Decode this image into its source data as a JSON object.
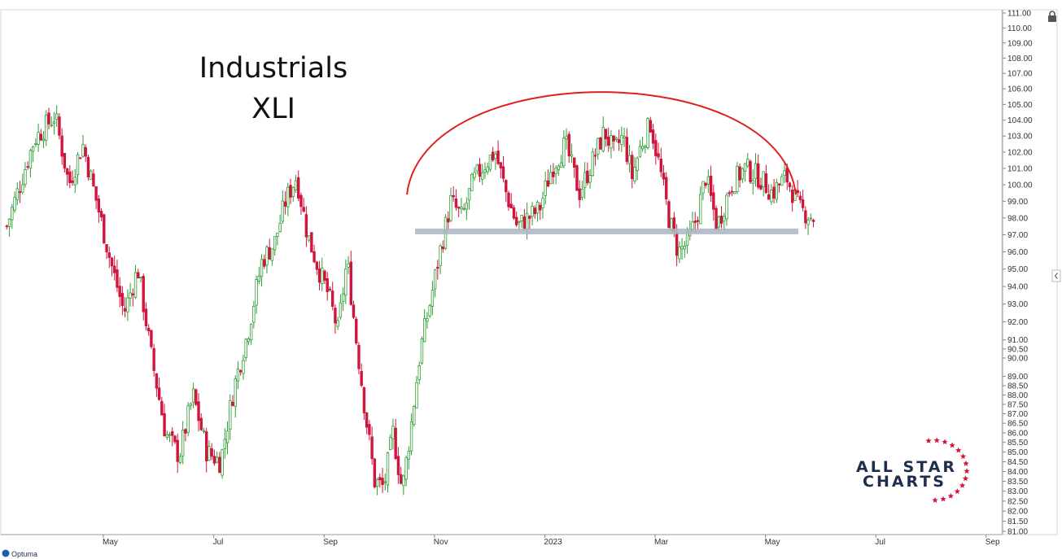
{
  "chart_data": {
    "type": "candlestick",
    "title": "Industrials",
    "subtitle": "XLI",
    "x_ticks": [
      "May",
      "Jul",
      "Sep",
      "Nov",
      "2023",
      "Mar",
      "May",
      "Jul",
      "Sep"
    ],
    "y_ticks": [
      "111.00",
      "110.00",
      "109.00",
      "108.00",
      "107.00",
      "106.00",
      "105.00",
      "104.00",
      "103.00",
      "102.00",
      "101.00",
      "100.00",
      "99.00",
      "98.00",
      "97.00",
      "96.00",
      "95.00",
      "94.00",
      "93.00",
      "92.00",
      "91.00",
      "90.50",
      "90.00",
      "89.00",
      "88.50",
      "88.00",
      "87.50",
      "87.00",
      "86.50",
      "86.00",
      "85.50",
      "85.00",
      "84.50",
      "84.00",
      "83.50",
      "83.00",
      "82.50",
      "82.00",
      "81.50",
      "81.00"
    ],
    "ylim": [
      81,
      111
    ],
    "y_scale": "log",
    "colors": {
      "up": "#2e9e33",
      "down": "#d1153d",
      "arc": "#e01f1f",
      "support": "#a9b4c2"
    },
    "support_level": 97.2,
    "arc": {
      "start": "Oct 2022",
      "end": "May 2023",
      "peak": 104.7,
      "ends_value": 99.5
    },
    "price_path": [
      [
        "Mar",
        97.5
      ],
      [
        "Mar",
        102.8
      ],
      [
        "Apr",
        104.3
      ],
      [
        "Apr",
        100.0
      ],
      [
        "Apr",
        102.5
      ],
      [
        "Apr",
        99.0
      ],
      [
        "May",
        95.5
      ],
      [
        "May",
        92.5
      ],
      [
        "May",
        95.0
      ],
      [
        "May",
        90.0
      ],
      [
        "Jun",
        86.0
      ],
      [
        "Jun",
        84.8
      ],
      [
        "Jun",
        88.0
      ],
      [
        "Jun",
        85.0
      ],
      [
        "Jul",
        84.5
      ],
      [
        "Jul",
        88.5
      ],
      [
        "Jul",
        91.5
      ],
      [
        "Jul",
        95.5
      ],
      [
        "Aug",
        96.5
      ],
      [
        "Aug",
        99.0
      ],
      [
        "Aug",
        100.5
      ],
      [
        "Aug",
        97.0
      ],
      [
        "Aug",
        95.0
      ],
      [
        "Sep",
        93.5
      ],
      [
        "Sep",
        91.5
      ],
      [
        "Sep",
        95.5
      ],
      [
        "Sep",
        91.0
      ],
      [
        "Sep",
        87.0
      ],
      [
        "Sep",
        83.5
      ],
      [
        "Oct",
        83.2
      ],
      [
        "Oct",
        86.0
      ],
      [
        "Oct",
        83.0
      ],
      [
        "Oct",
        86.5
      ],
      [
        "Oct",
        90.5
      ],
      [
        "Oct",
        93.0
      ],
      [
        "Nov",
        96.0
      ],
      [
        "Nov",
        99.0
      ],
      [
        "Nov",
        98.0
      ],
      [
        "Nov",
        100.2
      ],
      [
        "Nov",
        101.2
      ],
      [
        "Dec",
        102.0
      ],
      [
        "Dec",
        99.5
      ],
      [
        "Dec",
        97.5
      ],
      [
        "Dec",
        98.0
      ],
      [
        "Dec",
        98.5
      ],
      [
        "Jan",
        101.0
      ],
      [
        "Jan",
        102.5
      ],
      [
        "Jan",
        99.5
      ],
      [
        "Jan",
        101.5
      ],
      [
        "Feb",
        103.3
      ],
      [
        "Feb",
        102.0
      ],
      [
        "Feb",
        103.0
      ],
      [
        "Feb",
        100.5
      ],
      [
        "Feb",
        102.5
      ],
      [
        "Feb",
        103.8
      ],
      [
        "Mar",
        101.0
      ],
      [
        "Mar",
        98.0
      ],
      [
        "Mar",
        96.0
      ],
      [
        "Mar",
        96.5
      ],
      [
        "Mar",
        98.0
      ],
      [
        "Mar",
        100.5
      ],
      [
        "Apr",
        97.5
      ],
      [
        "Apr",
        100.0
      ],
      [
        "Apr",
        101.0
      ],
      [
        "Apr",
        100.5
      ],
      [
        "May",
        99.5
      ],
      [
        "May",
        100.5
      ],
      [
        "May",
        98.5
      ],
      [
        "May",
        98.0
      ]
    ]
  },
  "branding": {
    "logo_line1": "ALL STAR",
    "logo_line2": "CHARTS",
    "footer": "Optuma"
  }
}
